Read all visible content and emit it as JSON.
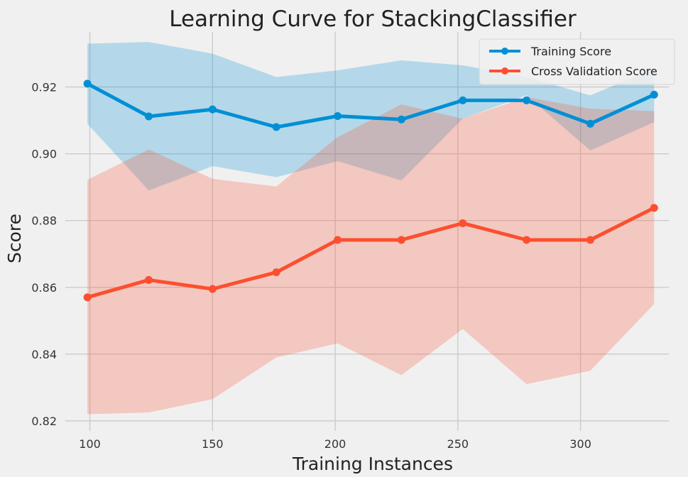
{
  "chart_data": {
    "type": "line",
    "title": "Learning Curve for StackingClassifier",
    "xlabel": "Training Instances",
    "ylabel": "Score",
    "xlim": [
      90,
      336
    ],
    "ylim": [
      0.817,
      0.9365
    ],
    "xticks": [
      100,
      150,
      200,
      250,
      300
    ],
    "yticks": [
      0.82,
      0.84,
      0.86,
      0.88,
      0.9,
      0.92
    ],
    "ytick_labels": [
      "0.82",
      "0.84",
      "0.86",
      "0.88",
      "0.90",
      "0.92"
    ],
    "grid": true,
    "legend_position": "top-right",
    "x": [
      99,
      124,
      150,
      176,
      201,
      227,
      252,
      278,
      304,
      330
    ],
    "series": [
      {
        "name": "Training Score",
        "color": "#008fd5",
        "values": [
          0.921,
          0.9112,
          0.9133,
          0.908,
          0.9113,
          0.9103,
          0.916,
          0.916,
          0.909,
          0.9177
        ],
        "upper": [
          0.933,
          0.9335,
          0.93,
          0.923,
          0.925,
          0.928,
          0.9265,
          0.923,
          0.9175,
          0.9255
        ],
        "lower": [
          0.909,
          0.889,
          0.8963,
          0.893,
          0.8978,
          0.892,
          0.9105,
          0.9175,
          0.901,
          0.9095
        ]
      },
      {
        "name": "Cross Validation Score",
        "color": "#fc4f30",
        "values": [
          0.857,
          0.8622,
          0.8595,
          0.8645,
          0.8742,
          0.8742,
          0.8792,
          0.8742,
          0.8742,
          0.8838
        ],
        "upper": [
          0.8922,
          0.9013,
          0.8925,
          0.8902,
          0.905,
          0.9148,
          0.9105,
          0.917,
          0.9135,
          0.9128
        ],
        "lower": [
          0.822,
          0.8225,
          0.8265,
          0.839,
          0.8432,
          0.8337,
          0.8475,
          0.831,
          0.835,
          0.855
        ]
      }
    ]
  }
}
